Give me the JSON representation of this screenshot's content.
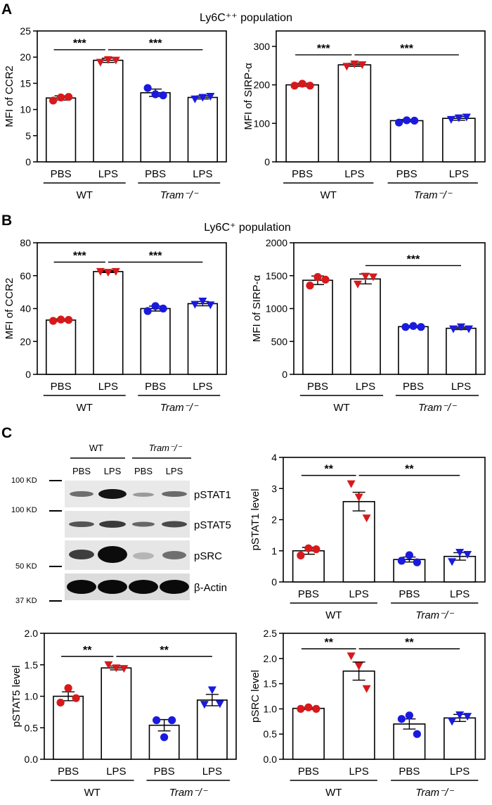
{
  "panels": {
    "A": {
      "label": "A",
      "title": "Ly6C⁺⁺ population"
    },
    "B": {
      "label": "B",
      "title": "Ly6C⁺ population"
    },
    "C": {
      "label": "C"
    }
  },
  "blot": {
    "groups": [
      "WT",
      "Tram⁻/⁻"
    ],
    "lanes": [
      "PBS",
      "LPS",
      "PBS",
      "LPS"
    ],
    "bands": [
      "pSTAT1",
      "pSTAT5",
      "pSRC",
      "β-Actin"
    ],
    "markers": [
      "100 KD",
      "100 KD",
      "50 KD",
      "37 KD"
    ]
  },
  "colors": {
    "wt": "#d7191c",
    "tram": "#1a1adf",
    "bar": "#ffffff",
    "axis": "#000000"
  },
  "chart_data": [
    {
      "type": "bar",
      "ylabel": "MFI of CCR2",
      "ylim": [
        0,
        25
      ],
      "yticks": [
        0,
        5,
        10,
        15,
        20,
        25
      ],
      "categories": [
        "PBS",
        "LPS",
        "PBS",
        "LPS"
      ],
      "groups": [
        "WT",
        "Tram⁻/⁻"
      ],
      "values": [
        12.2,
        19.4,
        13.2,
        12.3
      ],
      "errors": [
        0.4,
        0.4,
        0.7,
        0.3
      ],
      "points": [
        [
          11.7,
          12.3,
          12.4
        ],
        [
          19.0,
          19.5,
          19.4
        ],
        [
          14.1,
          12.9,
          12.7
        ],
        [
          12.0,
          12.3,
          12.5
        ]
      ],
      "markers": [
        "circle",
        "triangle",
        "circle",
        "triangle"
      ],
      "point_colors": [
        "wt",
        "wt",
        "tram",
        "tram"
      ],
      "significance": [
        {
          "from": 0,
          "to": 1,
          "label": "***"
        },
        {
          "from": 1,
          "to": 3,
          "label": "***"
        }
      ]
    },
    {
      "type": "bar",
      "ylabel": "MFI of SIRP-α",
      "ylim": [
        0,
        340
      ],
      "yticks": [
        0,
        100,
        200,
        300
      ],
      "categories": [
        "PBS",
        "LPS",
        "PBS",
        "LPS"
      ],
      "groups": [
        "WT",
        "Tram⁻/⁻"
      ],
      "values": [
        200,
        252,
        107,
        113
      ],
      "errors": [
        4,
        4,
        3,
        5
      ],
      "points": [
        [
          198,
          203,
          198
        ],
        [
          248,
          254,
          252
        ],
        [
          102,
          108,
          107
        ],
        [
          110,
          114,
          116
        ]
      ],
      "markers": [
        "circle",
        "triangle",
        "circle",
        "triangle"
      ],
      "point_colors": [
        "wt",
        "wt",
        "tram",
        "tram"
      ],
      "significance": [
        {
          "from": 0,
          "to": 1,
          "label": "***"
        },
        {
          "from": 1,
          "to": 3,
          "label": "***"
        }
      ]
    },
    {
      "type": "bar",
      "ylabel": "MFI of CCR2",
      "ylim": [
        0,
        80
      ],
      "yticks": [
        0,
        20,
        40,
        60,
        80
      ],
      "categories": [
        "PBS",
        "LPS",
        "PBS",
        "LPS"
      ],
      "groups": [
        "WT",
        "Tram⁻/⁻"
      ],
      "values": [
        33,
        62.5,
        40,
        43
      ],
      "errors": [
        0.7,
        0.6,
        1.5,
        1.3
      ],
      "points": [
        [
          32.5,
          33.3,
          33.1
        ],
        [
          62.5,
          62.0,
          62.5
        ],
        [
          38.5,
          41.5,
          40.0
        ],
        [
          42.5,
          44.5,
          42.2
        ]
      ],
      "markers": [
        "circle",
        "triangle",
        "circle",
        "triangle"
      ],
      "point_colors": [
        "wt",
        "wt",
        "tram",
        "tram"
      ],
      "significance": [
        {
          "from": 0,
          "to": 1,
          "label": "***"
        },
        {
          "from": 1,
          "to": 3,
          "label": "***"
        }
      ]
    },
    {
      "type": "bar",
      "ylabel": "MFI of SIRP-α",
      "ylim": [
        0,
        2000
      ],
      "yticks": [
        0,
        500,
        1000,
        1500,
        2000
      ],
      "categories": [
        "PBS",
        "LPS",
        "PBS",
        "LPS"
      ],
      "groups": [
        "WT",
        "Tram⁻/⁻"
      ],
      "values": [
        1430,
        1450,
        725,
        700
      ],
      "errors": [
        65,
        75,
        15,
        20
      ],
      "points": [
        [
          1350,
          1480,
          1440
        ],
        [
          1370,
          1490,
          1480
        ],
        [
          720,
          735,
          720
        ],
        [
          690,
          720,
          690
        ]
      ],
      "markers": [
        "circle",
        "triangle",
        "circle",
        "triangle"
      ],
      "point_colors": [
        "wt",
        "wt",
        "tram",
        "tram"
      ],
      "significance": [
        {
          "from": 1,
          "to": 3,
          "label": "***"
        }
      ]
    },
    {
      "type": "bar",
      "ylabel": "pSTAT1 level",
      "ylim": [
        0,
        4
      ],
      "yticks": [
        0,
        1,
        2,
        3,
        4
      ],
      "categories": [
        "PBS",
        "LPS",
        "PBS",
        "LPS"
      ],
      "groups": [
        "WT",
        "Tram⁻/⁻"
      ],
      "values": [
        1.0,
        2.58,
        0.72,
        0.82
      ],
      "errors": [
        0.11,
        0.3,
        0.08,
        0.12
      ],
      "points": [
        [
          0.85,
          1.08,
          1.05
        ],
        [
          3.15,
          2.72,
          2.05
        ],
        [
          0.68,
          0.86,
          0.63
        ],
        [
          0.65,
          0.95,
          0.88
        ]
      ],
      "markers": [
        "circle",
        "triangle",
        "circle",
        "triangle"
      ],
      "point_colors": [
        "wt",
        "wt",
        "tram",
        "tram"
      ],
      "significance": [
        {
          "from": 0,
          "to": 1,
          "label": "**"
        },
        {
          "from": 1,
          "to": 3,
          "label": "**"
        }
      ]
    },
    {
      "type": "bar",
      "ylabel": "pSTAT5 level",
      "ylim": [
        0,
        2.0
      ],
      "yticks": [
        0.0,
        0.5,
        1.0,
        1.5,
        2.0
      ],
      "categories": [
        "PBS",
        "LPS",
        "PBS",
        "LPS"
      ],
      "groups": [
        "WT",
        "Tram⁻/⁻"
      ],
      "values": [
        1.0,
        1.45,
        0.54,
        0.94
      ],
      "errors": [
        0.07,
        0.03,
        0.09,
        0.09
      ],
      "points": [
        [
          0.9,
          1.13,
          0.97
        ],
        [
          1.5,
          1.45,
          1.44
        ],
        [
          0.62,
          0.35,
          0.62
        ],
        [
          0.87,
          1.1,
          0.88
        ]
      ],
      "markers": [
        "circle",
        "triangle",
        "circle",
        "triangle"
      ],
      "point_colors": [
        "wt",
        "wt",
        "tram",
        "tram"
      ],
      "significance": [
        {
          "from": 0,
          "to": 1,
          "label": "**"
        },
        {
          "from": 1,
          "to": 3,
          "label": "**"
        }
      ]
    },
    {
      "type": "bar",
      "ylabel": "pSRC level",
      "ylim": [
        0,
        2.5
      ],
      "yticks": [
        0.0,
        0.5,
        1.0,
        1.5,
        2.0,
        2.5
      ],
      "categories": [
        "PBS",
        "LPS",
        "PBS",
        "LPS"
      ],
      "groups": [
        "WT",
        "Tram⁻/⁻"
      ],
      "values": [
        1.01,
        1.75,
        0.7,
        0.82
      ],
      "errors": [
        0.02,
        0.18,
        0.1,
        0.07
      ],
      "points": [
        [
          1.0,
          1.03,
          1.0
        ],
        [
          2.05,
          1.85,
          1.4
        ],
        [
          0.8,
          0.87,
          0.5
        ],
        [
          0.75,
          0.88,
          0.85
        ]
      ],
      "markers": [
        "circle",
        "triangle",
        "circle",
        "triangle"
      ],
      "point_colors": [
        "wt",
        "wt",
        "tram",
        "tram"
      ],
      "significance": [
        {
          "from": 0,
          "to": 1,
          "label": "**"
        },
        {
          "from": 1,
          "to": 3,
          "label": "**"
        }
      ]
    }
  ]
}
